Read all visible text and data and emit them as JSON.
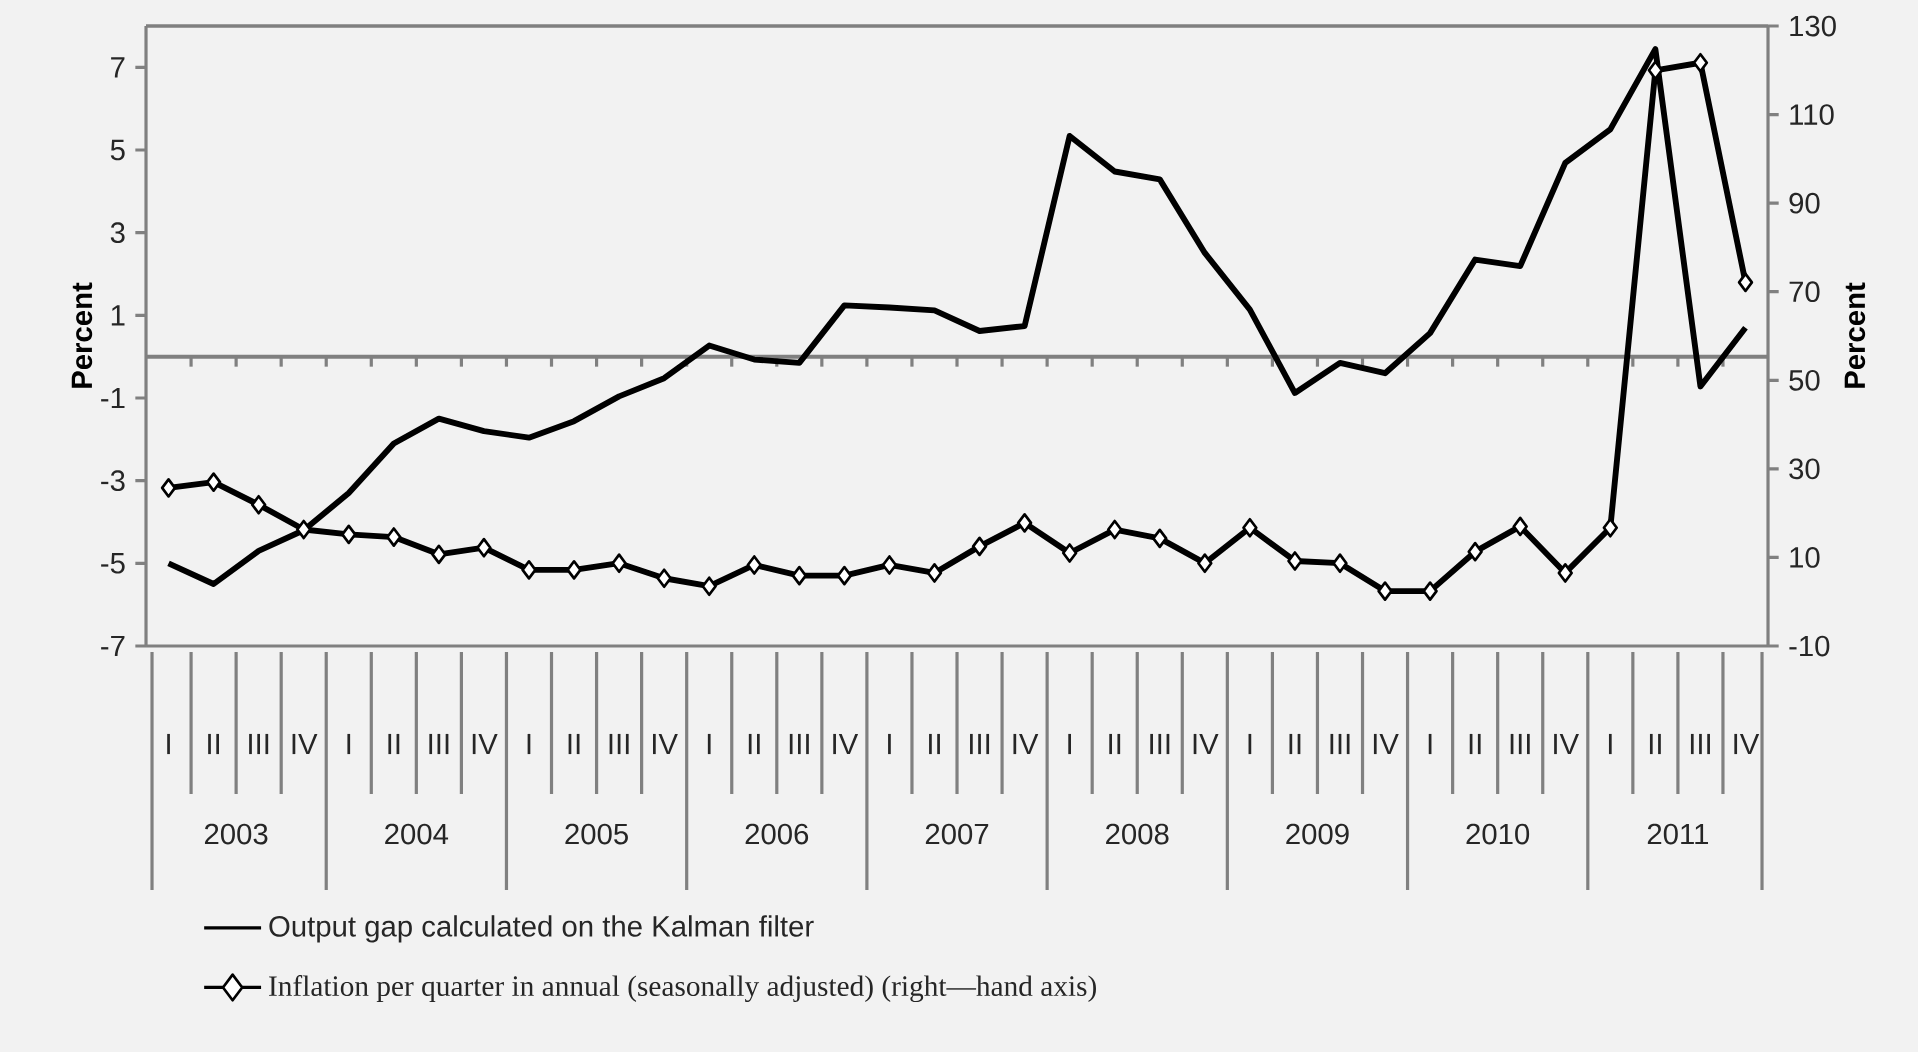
{
  "chart_data": {
    "type": "line",
    "categories": [
      "I",
      "II",
      "III",
      "IV",
      "I",
      "II",
      "III",
      "IV",
      "I",
      "II",
      "III",
      "IV",
      "I",
      "II",
      "III",
      "IV",
      "I",
      "II",
      "III",
      "IV",
      "I",
      "II",
      "III",
      "IV",
      "I",
      "II",
      "III",
      "IV",
      "I",
      "II",
      "III",
      "IV",
      "I",
      "II",
      "III",
      "IV"
    ],
    "annotations": [
      "2003",
      "2004",
      "2005",
      "2006",
      "2007",
      "2008",
      "2009",
      "2010",
      "2011"
    ],
    "ylabel": "Percent",
    "y2label": "Percent",
    "ylim": [
      -7,
      8
    ],
    "yticks": [
      -7,
      -5,
      -3,
      -1,
      1,
      3,
      5,
      7
    ],
    "y2lim": [
      -10,
      130
    ],
    "y2ticks": [
      -10,
      10,
      30,
      50,
      70,
      90,
      110,
      130
    ],
    "ref_lines": [
      {
        "axis": "y",
        "value": 0,
        "color": "#808080"
      }
    ],
    "legend": "bottom",
    "series": [
      {
        "name": "Output gap calculated  on the Kalman filter",
        "color": "#000000",
        "marker": "none",
        "values": [
          -5.0,
          -5.5,
          -4.7,
          -4.2,
          -3.3,
          -2.1,
          -1.5,
          -1.8,
          -1.96,
          -1.56,
          -0.96,
          -0.52,
          0.27,
          -0.07,
          -0.15,
          1.24,
          1.19,
          1.12,
          0.62,
          0.74,
          5.34,
          4.48,
          4.29,
          2.51,
          1.14,
          -0.88,
          -0.15,
          -0.4,
          0.57,
          2.35,
          2.19,
          4.69,
          5.5,
          7.44,
          -0.72,
          0.7
        ]
      },
      {
        "name": "Inflation per quarter in annual (seasonally adjusted) (right—hand axis)",
        "color": "#000000",
        "marker": "diamond",
        "axis": "y2",
        "values": [
          25.7,
          27.0,
          21.9,
          16.3,
          15.2,
          14.6,
          10.7,
          12.2,
          7.2,
          7.2,
          8.7,
          5.3,
          3.5,
          8.3,
          5.9,
          5.9,
          8.3,
          6.5,
          12.5,
          17.8,
          11.0,
          16.3,
          14.3,
          8.7,
          16.7,
          9.2,
          8.7,
          2.4,
          2.4,
          11.3,
          17.0,
          6.5,
          16.7,
          120.0,
          121.7,
          72.1
        ]
      }
    ]
  }
}
